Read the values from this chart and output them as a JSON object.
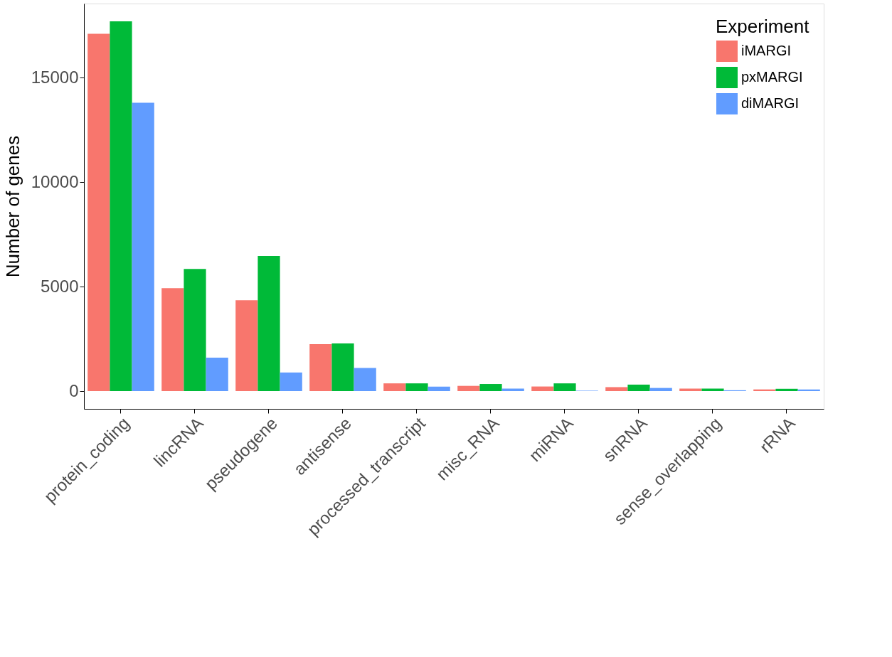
{
  "chart_data": {
    "type": "bar",
    "ylabel": "Number of genes",
    "legend_title": "Experiment",
    "legend": "top right",
    "grid": false,
    "categories": [
      "protein_coding",
      "lincRNA",
      "pseudogene",
      "antisense",
      "processed_transcript",
      "misc_RNA",
      "miRNA",
      "snRNA",
      "sense_overlapping",
      "rRNA"
    ],
    "series": [
      {
        "name": "iMARGI",
        "color": "#f8766d",
        "values": [
          17100,
          4930,
          4350,
          2250,
          370,
          250,
          220,
          190,
          120,
          80
        ]
      },
      {
        "name": "pxMARGI",
        "color": "#00ba38",
        "values": [
          17700,
          5850,
          6470,
          2280,
          370,
          340,
          370,
          310,
          120,
          110
        ]
      },
      {
        "name": "diMARGI",
        "color": "#619cff",
        "values": [
          13800,
          1600,
          890,
          1110,
          210,
          120,
          20,
          150,
          40,
          80
        ]
      }
    ],
    "ylim": [
      -850,
      18550
    ],
    "yticks": [
      0,
      5000,
      10000,
      15000
    ]
  }
}
